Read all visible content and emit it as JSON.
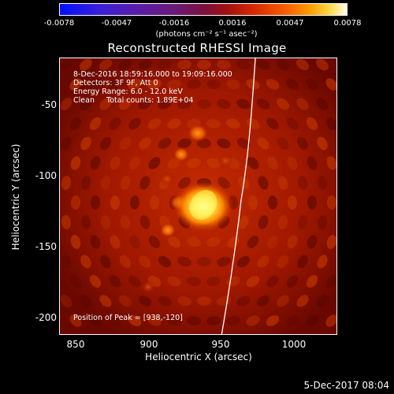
{
  "colorbar": {
    "ticks": [
      "-0.0078",
      "-0.0047",
      "-0.0016",
      "0.0016",
      "0.0047",
      "0.0078"
    ],
    "units": "(photons cm⁻² s⁻¹ asec⁻²)"
  },
  "title": "Reconstructed RHESSI Image",
  "info": {
    "time": "8-Dec-2016 18:59:16.000 to 19:09:16.000",
    "detectors": "Detectors: 3F 9F, Att 0",
    "energy": "Energy Range: 6.0 - 12.0 keV",
    "clean": "Clean     Total counts: 1.89E+04",
    "peak": "Position of Peak = [938,-120]"
  },
  "axes": {
    "xlabel": "Heliocentric X (arcsec)",
    "ylabel": "Heliocentric Y (arcsec)",
    "xticks": [
      "850",
      "900",
      "950",
      "1000"
    ],
    "yticks": [
      "-50",
      "-100",
      "-150",
      "-200"
    ]
  },
  "footer": {
    "date": "5-Dec-2017 08:04"
  },
  "colors": {
    "limb": "#ffffff",
    "background": "#000000",
    "accent": "#ff9a00"
  }
}
